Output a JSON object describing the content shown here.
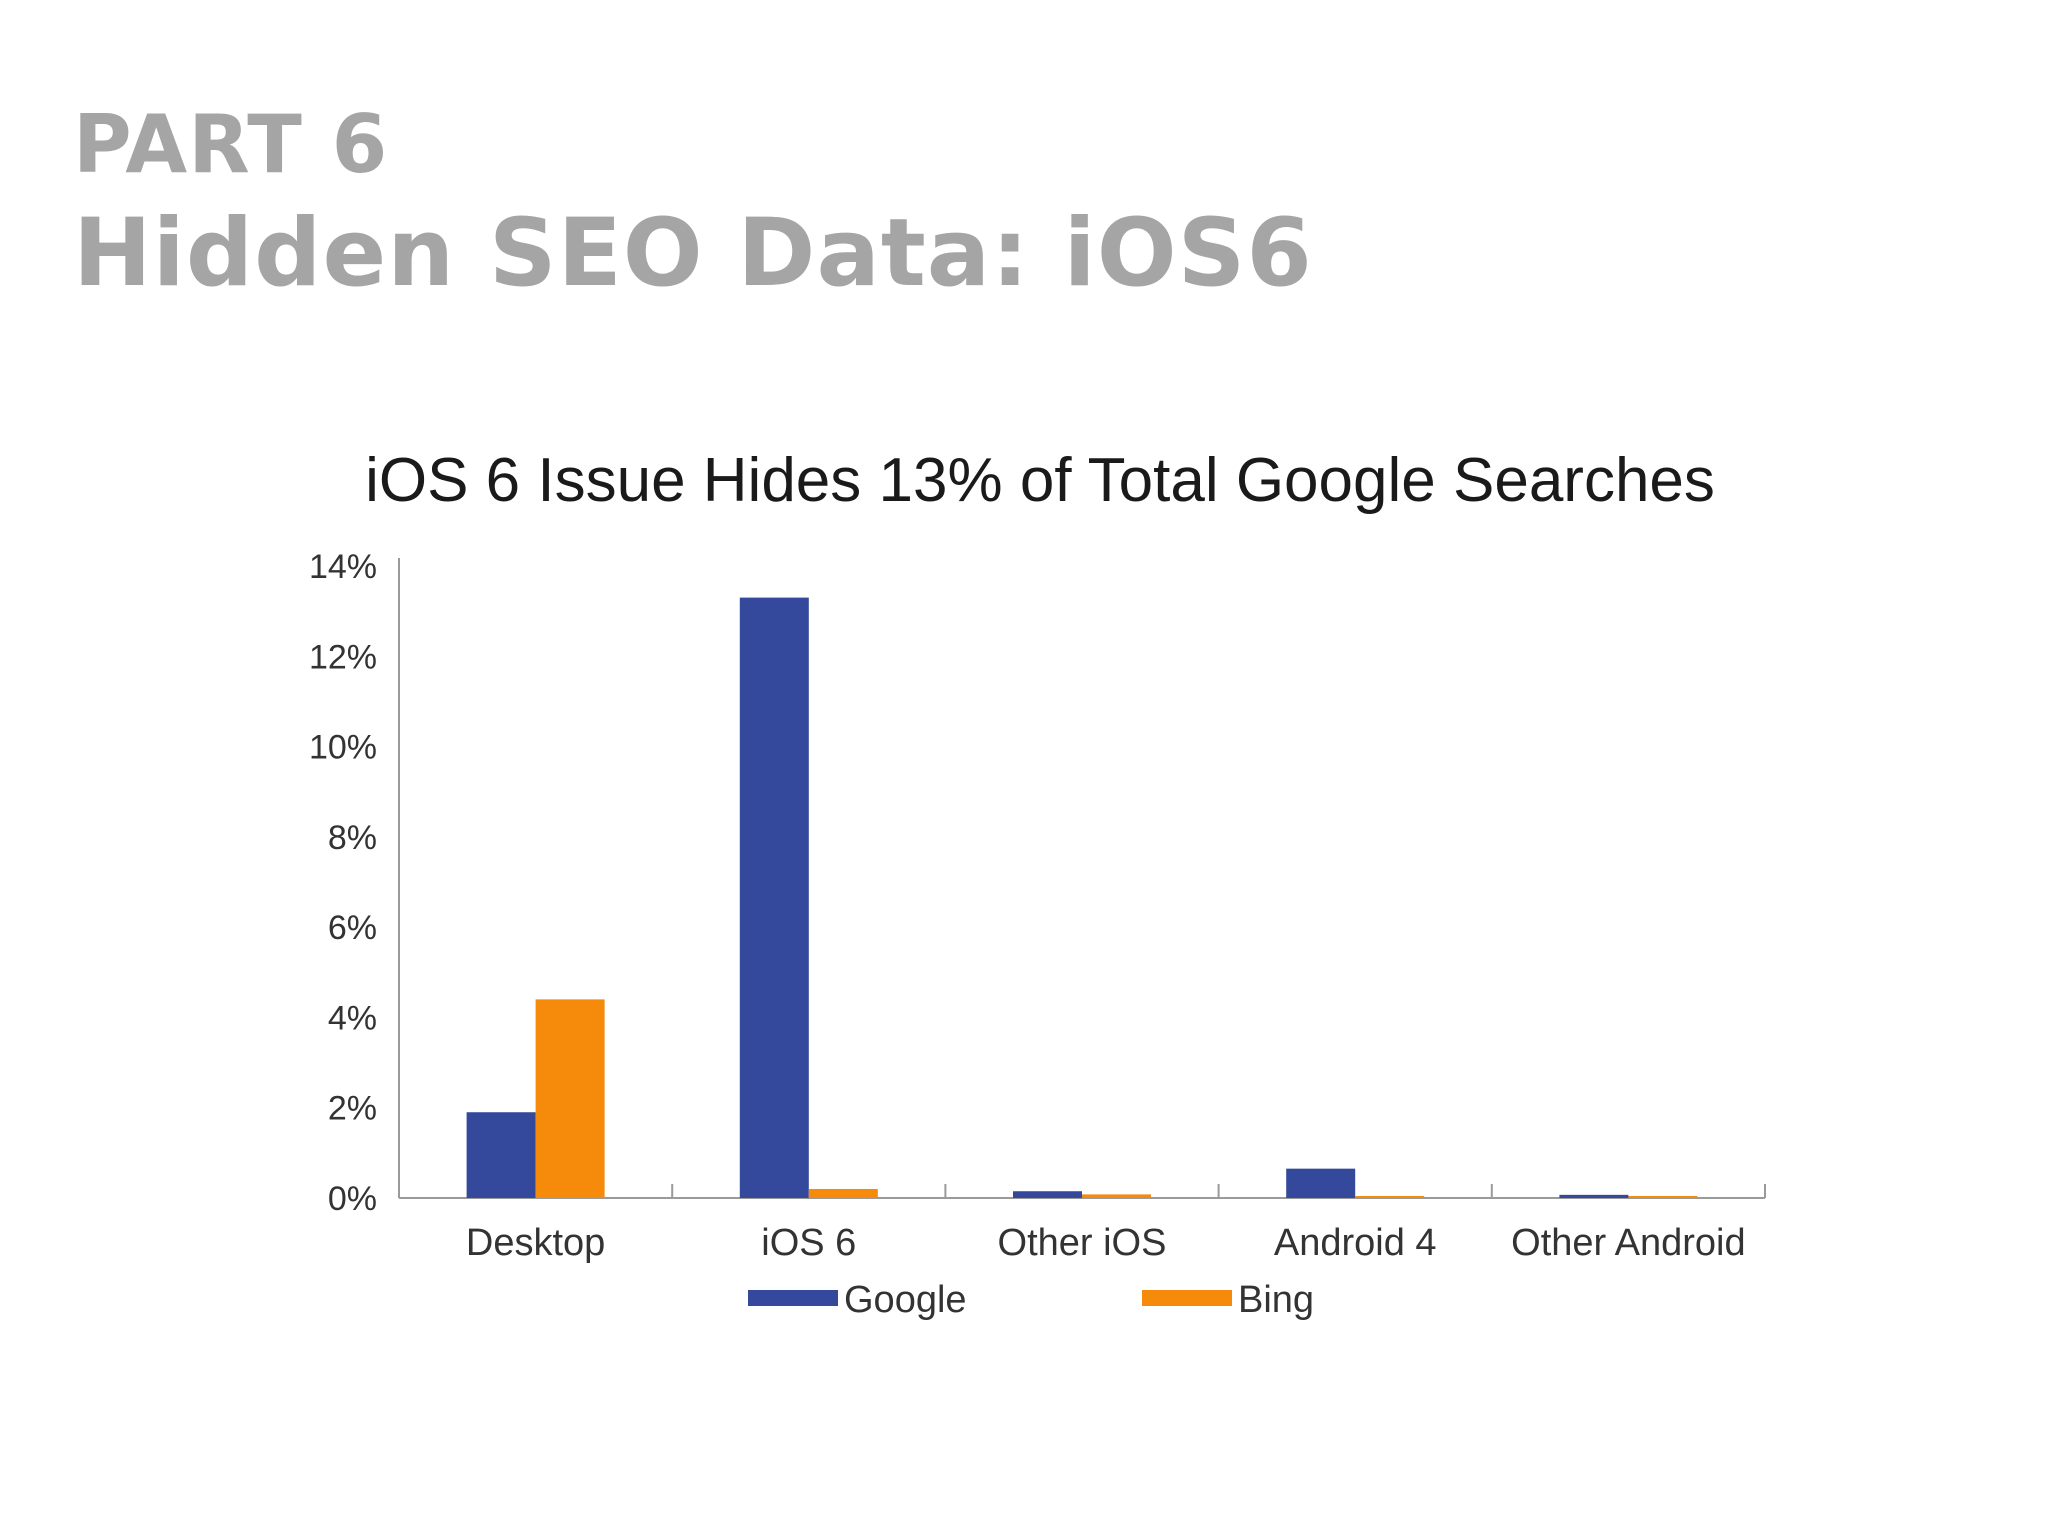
{
  "slide": {
    "kicker": "PART 6",
    "title": "Hidden SEO Data: iOS6"
  },
  "chart_data": {
    "type": "bar",
    "title": "iOS 6 Issue Hides 13% of Total Google Searches",
    "categories": [
      "Desktop",
      "iOS 6",
      "Other iOS",
      "Android 4",
      "Other Android"
    ],
    "series": [
      {
        "name": "Google",
        "color": "#34499b",
        "values": [
          1.9,
          13.3,
          0.15,
          0.65,
          0.07
        ]
      },
      {
        "name": "Bing",
        "color": "#f58a0b",
        "values": [
          4.4,
          0.2,
          0.08,
          0.02,
          0.02
        ]
      }
    ],
    "ylim": [
      0,
      14
    ],
    "yticks": [
      "0%",
      "2%",
      "4%",
      "6%",
      "8%",
      "10%",
      "12%",
      "14%"
    ],
    "ytick_values": [
      0,
      2,
      4,
      6,
      8,
      10,
      12,
      14
    ],
    "xlabel": "",
    "ylabel": "",
    "grid": false,
    "legend_position": "bottom"
  }
}
